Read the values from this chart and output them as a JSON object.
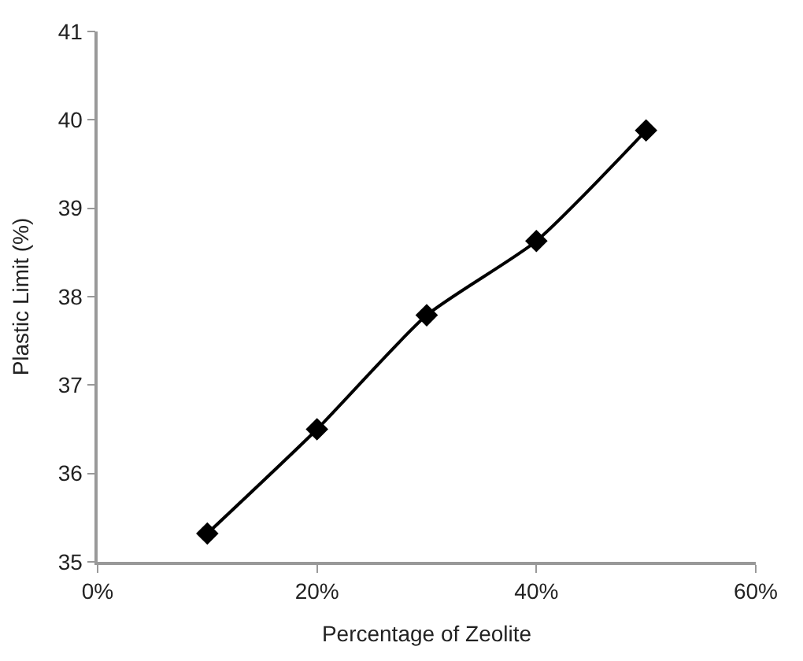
{
  "chart_data": {
    "type": "line",
    "xlabel": "Percentage of Zeolite",
    "ylabel": "Plastic Limit (%)",
    "x": [
      10,
      20,
      30,
      40,
      50
    ],
    "series": [
      {
        "color": "#000000",
        "values": [
          35.32,
          36.5,
          37.79,
          38.63,
          39.88
        ]
      }
    ],
    "xlim": [
      0,
      60
    ],
    "xticks": [
      {
        "value": 0,
        "label": "0%"
      },
      {
        "value": 20,
        "label": "20%"
      },
      {
        "value": 40,
        "label": "40%"
      },
      {
        "value": 60,
        "label": "60%"
      }
    ],
    "ylim": [
      35,
      41
    ],
    "yticks": [
      35,
      36,
      37,
      38,
      39,
      40,
      41
    ],
    "marker": "diamond",
    "line_style": "solid"
  }
}
